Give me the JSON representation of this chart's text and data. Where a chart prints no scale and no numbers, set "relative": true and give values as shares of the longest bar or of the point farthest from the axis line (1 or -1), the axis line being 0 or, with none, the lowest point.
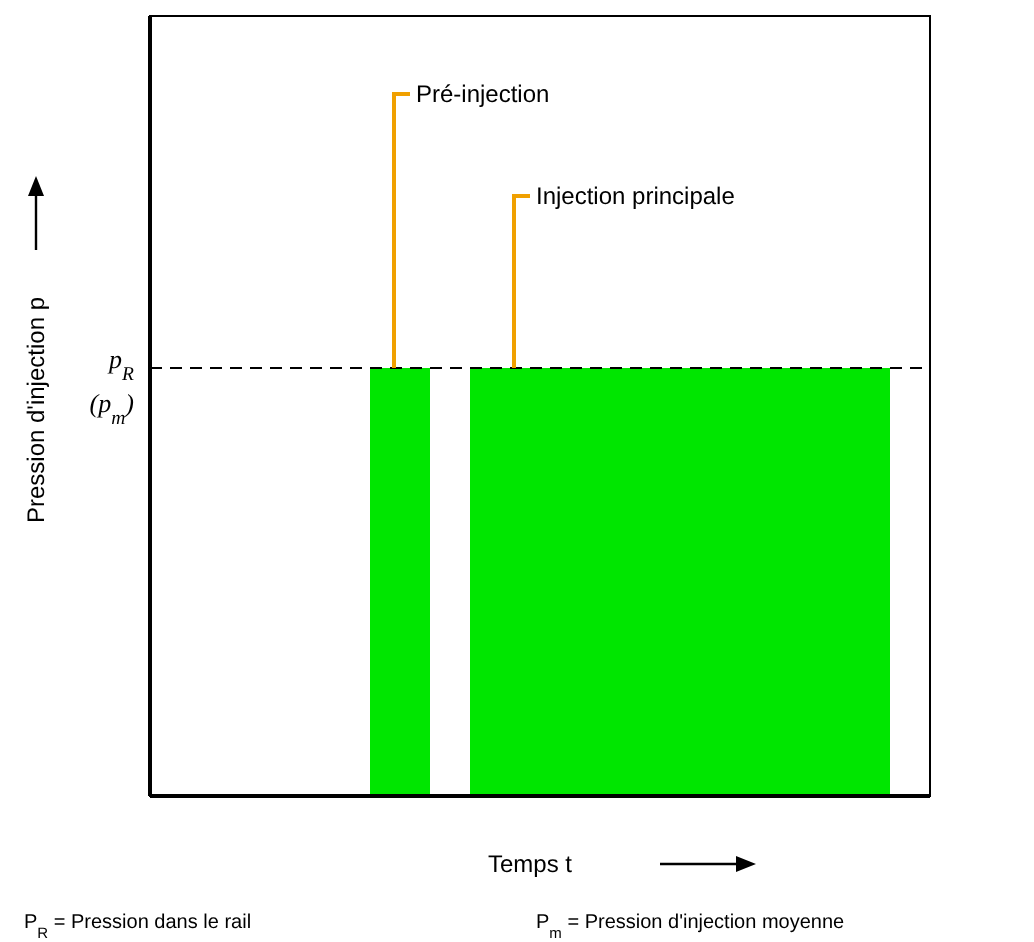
{
  "chart_data": {
    "type": "area",
    "relative": true,
    "xlabel": "Temps t",
    "ylabel": "Pression d'injection p",
    "categories": [
      null,
      null,
      null,
      null,
      null,
      null,
      null,
      null,
      null,
      null,
      null,
      null,
      null,
      null,
      null,
      null,
      null,
      null,
      null,
      null,
      null,
      null,
      null,
      null,
      null,
      null,
      null,
      null,
      null,
      null,
      null,
      null,
      null,
      null,
      null,
      null,
      null,
      null,
      null,
      null
    ],
    "series": [
      {
        "color": "#00e600",
        "values": [
          0,
          0,
          0,
          0,
          0,
          0,
          0,
          0,
          0,
          0,
          0,
          1,
          1,
          1,
          0,
          0,
          1,
          1,
          1,
          1,
          1,
          1,
          1,
          1,
          1,
          1,
          1,
          1,
          1,
          1,
          1,
          1,
          1,
          1,
          1,
          1,
          1,
          0,
          0,
          0
        ]
      }
    ],
    "ref_lines": [
      {
        "axis": "y",
        "value": 1,
        "label": "p$_{R}$ (p$_{m}$)",
        "line_style": "dashed",
        "color": "#000000"
      }
    ],
    "annotations": [
      "Pré-injection",
      "Injection principale",
      "P$_{R}$ = Pression dans le rail",
      "P$_{m}$ = Pression d'injection moyenne"
    ]
  }
}
